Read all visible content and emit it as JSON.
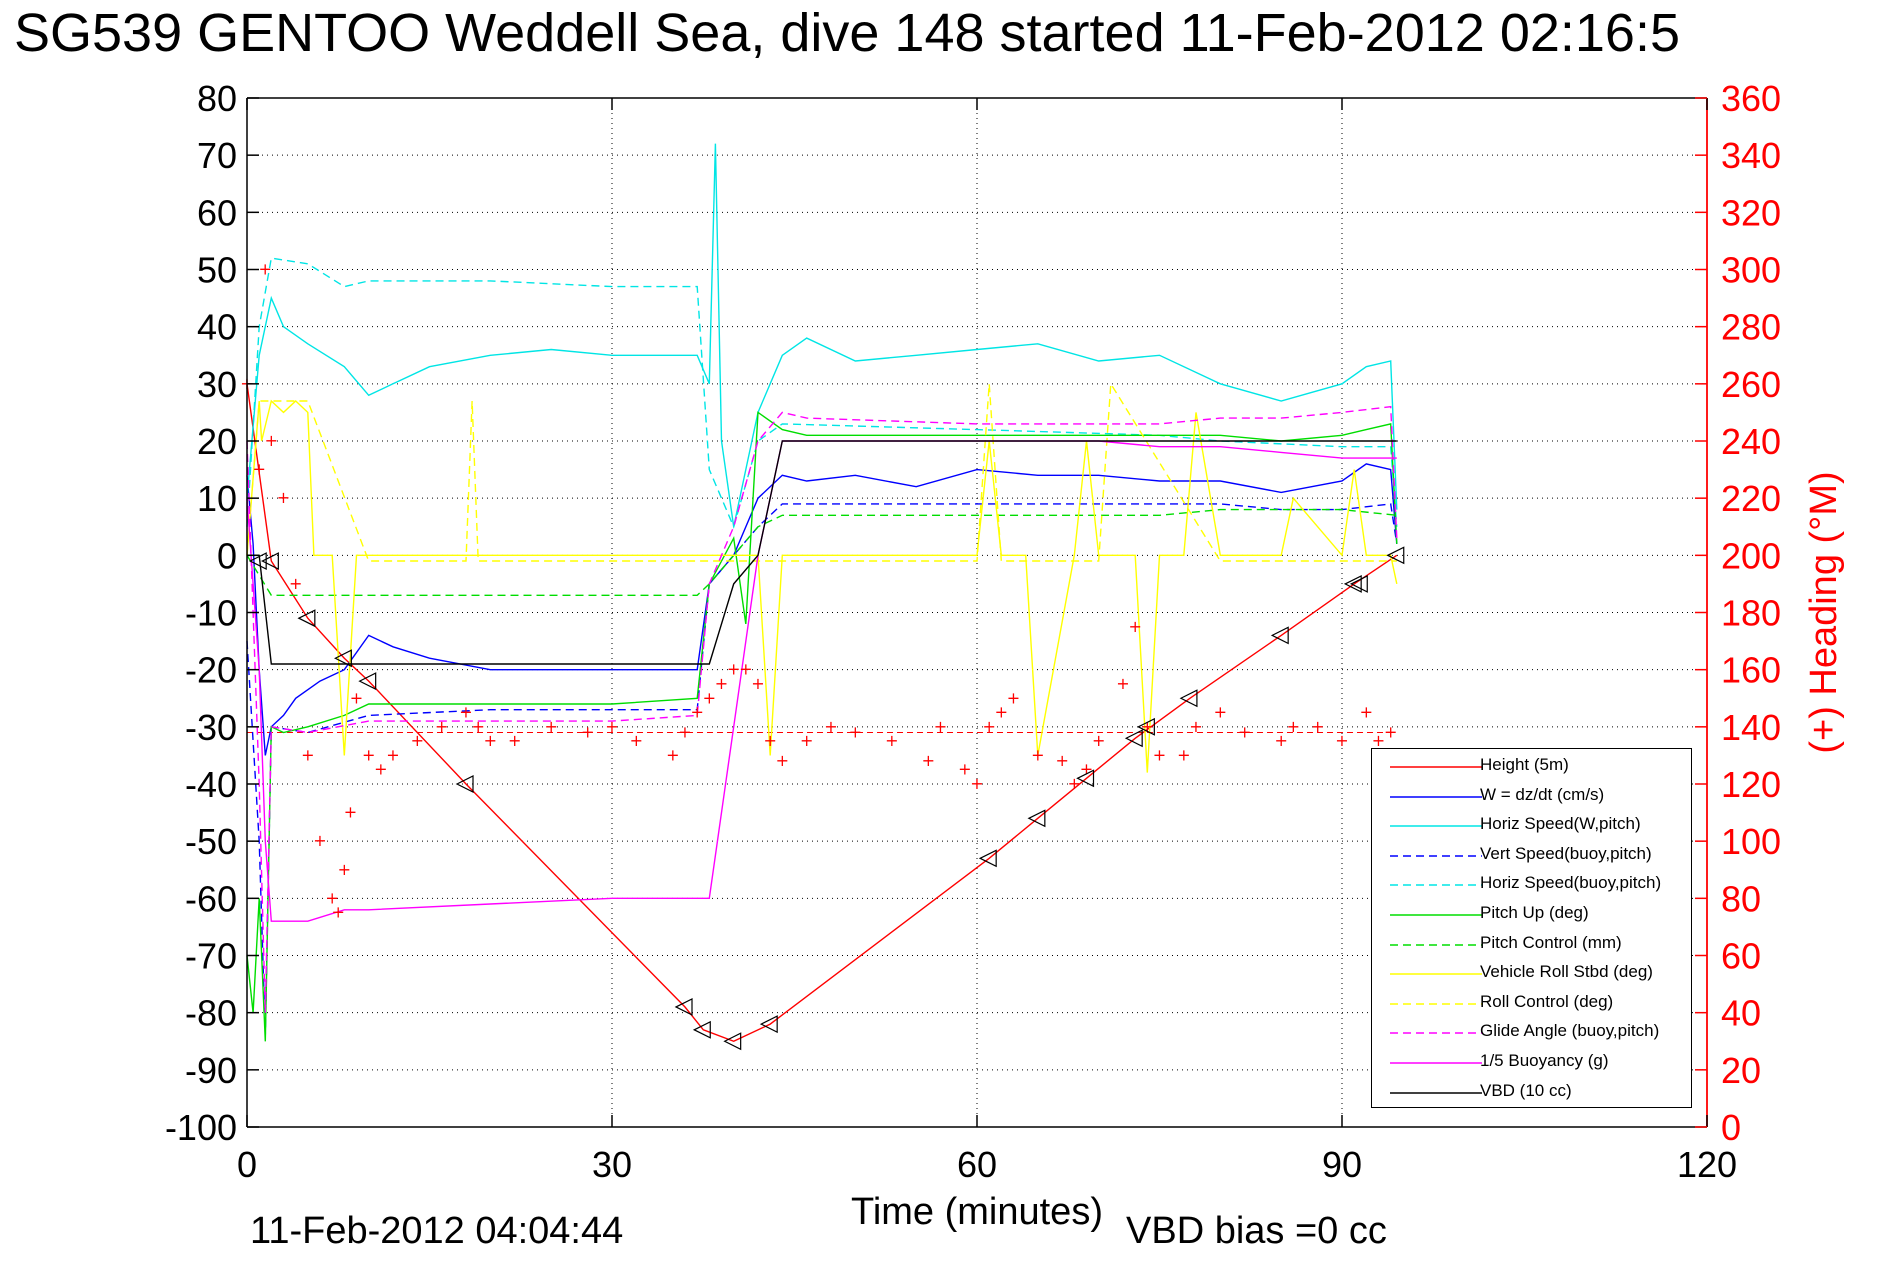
{
  "page": {
    "title": "SG539 GENTOO Weddell Sea, dive 148 started 11-Feb-2012 02:16:5",
    "footer_date": "11-Feb-2012 04:04:44",
    "vbd_bias": "VBD bias =0 cc"
  },
  "chart_data": {
    "type": "line",
    "xlabel": "Time (minutes)",
    "ylabel_right": "(+) Heading (°M)",
    "xlim": [
      0,
      120
    ],
    "ylim": [
      -100,
      80
    ],
    "ylim_right": [
      0,
      360
    ],
    "x_ticks": [
      0,
      30,
      60,
      90,
      120
    ],
    "y_ticks": [
      80,
      70,
      60,
      50,
      40,
      30,
      20,
      10,
      0,
      -10,
      -20,
      -30,
      -40,
      -50,
      -60,
      -70,
      -80,
      -90,
      -100
    ],
    "y_right_ticks": [
      360,
      340,
      320,
      300,
      280,
      260,
      240,
      220,
      200,
      180,
      160,
      140,
      120,
      100,
      80,
      60,
      40,
      20,
      0
    ],
    "grid": true,
    "legend_position": "bottom-right",
    "colors": {
      "axis": "#000000",
      "right_axis": "#ff0000",
      "grid": "#000000"
    },
    "series": [
      {
        "name": "Height (5m)",
        "color": "#ff0000",
        "dash": false,
        "x": [
          0,
          2,
          5,
          8,
          10,
          18,
          36,
          37.5,
          40,
          43,
          61,
          65,
          69,
          73,
          77.5,
          85,
          91,
          94.5
        ],
        "y": [
          30,
          -1,
          -11,
          -18,
          -22,
          -40,
          -79,
          -83,
          -85,
          -82,
          -53,
          -46,
          -39,
          -32,
          -25,
          -14,
          -5,
          0
        ]
      },
      {
        "name": "W = dz/dt (cm/s)",
        "color": "#0000ff",
        "dash": false,
        "x": [
          0,
          0.5,
          1,
          1.5,
          2,
          3,
          4,
          6,
          8,
          10,
          12,
          15,
          20,
          25,
          30,
          35,
          37,
          38,
          40,
          42,
          44,
          46,
          50,
          55,
          60,
          65,
          70,
          75,
          80,
          85,
          90,
          92,
          94,
          94.5
        ],
        "y": [
          14,
          2,
          -20,
          -35,
          -30,
          -28,
          -25,
          -22,
          -20,
          -14,
          -16,
          -18,
          -20,
          -20,
          -20,
          -20,
          -20,
          -5,
          0,
          10,
          14,
          13,
          14,
          12,
          15,
          14,
          14,
          13,
          13,
          11,
          13,
          16,
          15,
          2
        ]
      },
      {
        "name": "Horiz Speed(W,pitch)",
        "color": "#00e5e5",
        "dash": false,
        "x": [
          0,
          1,
          2,
          3,
          5,
          8,
          10,
          12,
          15,
          20,
          25,
          30,
          35,
          37,
          38,
          38.5,
          39,
          40,
          41,
          42,
          44,
          46,
          50,
          55,
          60,
          65,
          70,
          75,
          80,
          85,
          90,
          92,
          94,
          94.5
        ],
        "y": [
          10,
          35,
          45,
          40,
          37,
          33,
          28,
          30,
          33,
          35,
          36,
          35,
          35,
          35,
          30,
          72,
          20,
          5,
          15,
          25,
          35,
          38,
          34,
          35,
          36,
          37,
          34,
          35,
          30,
          27,
          30,
          33,
          34,
          8
        ]
      },
      {
        "name": "Vert Speed(buoy,pitch)",
        "color": "#0000ff",
        "dash": true,
        "x": [
          0,
          1,
          1.5,
          2,
          5,
          10,
          20,
          30,
          37,
          38,
          40,
          42,
          44,
          46,
          60,
          75,
          80,
          85,
          90,
          94,
          94.5
        ],
        "y": [
          -15,
          -50,
          -84,
          -30,
          -31,
          -28,
          -27,
          -27,
          -27,
          -5,
          0,
          5,
          9,
          9,
          9,
          9,
          9,
          8,
          8,
          9,
          2
        ]
      },
      {
        "name": "Horiz Speed(buoy,pitch)",
        "color": "#00e5e5",
        "dash": true,
        "x": [
          0,
          1,
          2,
          5,
          8,
          10,
          15,
          20,
          30,
          37,
          38,
          40,
          42,
          44,
          60,
          75,
          80,
          90,
          94,
          94.5
        ],
        "y": [
          5,
          40,
          52,
          51,
          47,
          48,
          48,
          48,
          47,
          47,
          15,
          5,
          20,
          23,
          22,
          21,
          20,
          19,
          19,
          5
        ]
      },
      {
        "name": "Pitch Up (deg)",
        "color": "#00dd00",
        "dash": false,
        "x": [
          0,
          0.5,
          1,
          1.5,
          2,
          3,
          5,
          8,
          10,
          15,
          20,
          30,
          37,
          38,
          40,
          41,
          42,
          44,
          46,
          60,
          70,
          75,
          80,
          85,
          90,
          92,
          94,
          94.5
        ],
        "y": [
          -70,
          -80,
          -60,
          -85,
          -30,
          -31,
          -30,
          -28,
          -26,
          -26,
          -26,
          -26,
          -25,
          -5,
          3,
          -12,
          25,
          22,
          21,
          21,
          21,
          21,
          21,
          20,
          21,
          22,
          23,
          2
        ]
      },
      {
        "name": "Pitch Control (mm)",
        "color": "#00dd00",
        "dash": true,
        "x": [
          0,
          2,
          5,
          10,
          20,
          30,
          37,
          38,
          40,
          42,
          44,
          46,
          60,
          75,
          80,
          90,
          94.5
        ],
        "y": [
          0,
          -7,
          -7,
          -7,
          -7,
          -7,
          -7,
          -5,
          0,
          5,
          7,
          7,
          7,
          7,
          8,
          8,
          7
        ]
      },
      {
        "name": "Vehicle Roll Stbd (deg)",
        "color": "#ffff00",
        "dash": false,
        "x": [
          0,
          1,
          1.2,
          2,
          3,
          4,
          5,
          5.5,
          6,
          7,
          8,
          9,
          10,
          15,
          18,
          20,
          25,
          30,
          35,
          37,
          38,
          40,
          42,
          43,
          44,
          46,
          50,
          60,
          61,
          62,
          64,
          65,
          68,
          69,
          70,
          73,
          74,
          75,
          77,
          78,
          80,
          85,
          86,
          90,
          91,
          92,
          94,
          94.5
        ],
        "y": [
          0,
          27,
          20,
          27,
          25,
          27,
          25,
          0,
          0,
          0,
          -35,
          0,
          0,
          0,
          0,
          0,
          0,
          0,
          0,
          0,
          0,
          0,
          0,
          -35,
          0,
          0,
          0,
          0,
          20,
          0,
          0,
          -35,
          0,
          20,
          0,
          0,
          -38,
          0,
          0,
          25,
          0,
          0,
          10,
          0,
          15,
          0,
          0,
          -5
        ]
      },
      {
        "name": "Roll Control (deg)",
        "color": "#ffff00",
        "dash": true,
        "x": [
          0,
          1,
          2,
          5,
          10,
          18,
          18.5,
          19,
          20,
          30,
          37,
          38,
          40,
          44,
          60,
          61,
          62,
          70,
          71,
          80,
          90,
          94.5
        ],
        "y": [
          0,
          27,
          27,
          27,
          -1,
          -1,
          27,
          -1,
          -1,
          -1,
          -1,
          -1,
          -1,
          -1,
          -1,
          30,
          -1,
          -1,
          30,
          -1,
          -1,
          -1
        ]
      },
      {
        "name": "Glide Angle (buoy,pitch)",
        "color": "#ff00ff",
        "dash": true,
        "x": [
          0,
          1,
          1.5,
          2,
          5,
          10,
          20,
          30,
          37,
          38,
          40,
          42,
          44,
          46,
          60,
          70,
          75,
          80,
          85,
          90,
          94,
          94.5
        ],
        "y": [
          20,
          -40,
          -80,
          -30,
          -31,
          -29,
          -29,
          -29,
          -28,
          -5,
          5,
          20,
          25,
          24,
          23,
          23,
          23,
          24,
          24,
          25,
          26,
          3
        ]
      },
      {
        "name": "1/5 Buoyancy (g)",
        "color": "#ff00ff",
        "dash": false,
        "x": [
          0,
          1,
          1.5,
          2,
          5,
          8,
          10,
          20,
          30,
          37,
          38,
          40,
          42,
          44,
          46,
          60,
          70,
          75,
          80,
          85,
          90,
          94.5
        ],
        "y": [
          10,
          -20,
          -50,
          -64,
          -64,
          -62,
          -62,
          -61,
          -60,
          -60,
          -60,
          -30,
          0,
          20,
          20,
          20,
          20,
          19,
          19,
          18,
          17,
          17
        ]
      },
      {
        "name": "VBD (10 cc)",
        "color": "#000000",
        "dash": false,
        "x": [
          0,
          1,
          2,
          5,
          10,
          20,
          30,
          37,
          38,
          40,
          42,
          44,
          46,
          60,
          70,
          80,
          90,
          94.5
        ],
        "y": [
          0,
          0,
          -19,
          -19,
          -19,
          -19,
          -19,
          -19,
          -19,
          -5,
          0,
          20,
          20,
          20,
          20,
          20,
          20,
          20
        ]
      }
    ],
    "heading": {
      "color": "#ff0000",
      "marker": "+",
      "axis": "right",
      "reference": 138,
      "x": [
        0,
        1,
        1.5,
        2,
        3,
        4,
        5,
        6,
        7,
        7.5,
        8,
        8.5,
        9,
        10,
        11,
        12,
        14,
        16,
        18,
        19,
        20,
        22,
        25,
        28,
        30,
        32,
        35,
        36,
        37,
        38,
        39,
        40,
        41,
        42,
        43,
        44,
        46,
        48,
        50,
        53,
        56,
        57,
        59,
        60,
        61,
        62,
        63,
        65,
        67,
        68,
        69,
        70,
        72,
        73,
        74,
        75,
        77,
        78,
        80,
        82,
        85,
        86,
        88,
        90,
        92,
        93,
        94
      ],
      "y": [
        260,
        230,
        300,
        240,
        220,
        190,
        130,
        100,
        80,
        75,
        90,
        110,
        150,
        130,
        125,
        130,
        135,
        140,
        145,
        140,
        135,
        135,
        140,
        138,
        140,
        135,
        130,
        138,
        145,
        150,
        155,
        160,
        160,
        155,
        135,
        128,
        135,
        140,
        138,
        135,
        128,
        140,
        125,
        120,
        140,
        145,
        150,
        130,
        128,
        120,
        125,
        135,
        155,
        175,
        140,
        130,
        130,
        140,
        145,
        138,
        135,
        140,
        140,
        135,
        145,
        135,
        138
      ]
    },
    "triangle_markers": {
      "color": "#000000",
      "x": [
        1,
        2,
        5,
        8,
        10,
        18,
        36,
        37.5,
        40,
        43,
        61,
        65,
        69,
        73,
        74,
        77.5,
        85,
        91,
        91.5,
        94.5
      ],
      "y": [
        -1,
        -1,
        -11,
        -18,
        -22,
        -40,
        -79,
        -83,
        -85,
        -82,
        -53,
        -46,
        -39,
        -32,
        -30,
        -25,
        -14,
        -5,
        -5,
        0
      ]
    }
  }
}
